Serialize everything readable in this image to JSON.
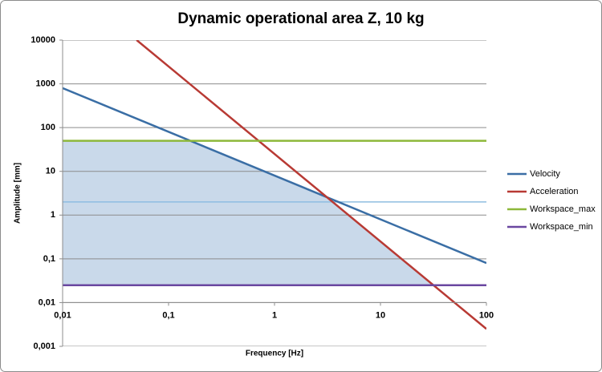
{
  "chart_data": {
    "type": "line",
    "title": "Dynamic operational area Z, 10 kg",
    "xlabel": "Frequency [Hz]",
    "ylabel": "Amplitude [mm]",
    "xscale": "log",
    "yscale": "log",
    "xlim": [
      0.01,
      100
    ],
    "ylim": [
      0.001,
      10000
    ],
    "xticks": [
      {
        "value": 0.01,
        "label": "0,01"
      },
      {
        "value": 0.1,
        "label": "0,1"
      },
      1,
      10,
      100
    ],
    "yticks": [
      {
        "value": 0.001,
        "label": "0,001"
      },
      {
        "value": 0.01,
        "label": "0,01"
      },
      {
        "value": 0.1,
        "label": "0,1"
      },
      1,
      10,
      100,
      1000,
      10000
    ],
    "xaxis_crosses": 0.01,
    "grid": true,
    "legend": "right",
    "series": [
      {
        "name": "Velocity",
        "color": "#3a6ea5",
        "x": [
          0.01,
          100
        ],
        "values": [
          800,
          0.08
        ]
      },
      {
        "name": "Acceleration",
        "color": "#b83a34",
        "x": [
          0.05,
          100
        ],
        "values": [
          10000,
          0.0025
        ]
      },
      {
        "name": "Workspace_max",
        "color": "#8db83a",
        "x": [
          0.01,
          100
        ],
        "values": [
          50,
          50
        ]
      },
      {
        "name": "Workspace_min",
        "color": "#6a47a0",
        "x": [
          0.01,
          100
        ],
        "values": [
          0.025,
          0.025
        ]
      }
    ],
    "hlines": [
      {
        "value": 2,
        "color": "#8fbde0"
      }
    ],
    "feasible_area": {
      "color": "#c9d9ea",
      "lower": 3,
      "upper": [
        0,
        1,
        2
      ]
    }
  }
}
